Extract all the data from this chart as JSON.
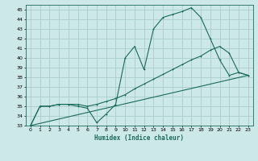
{
  "xlabel": "Humidex (Indice chaleur)",
  "bg_color": "#cce8e8",
  "grid_color": "#aacccc",
  "line_color": "#1a6b5a",
  "xlim": [
    -0.5,
    23.5
  ],
  "ylim": [
    33,
    45.5
  ],
  "yticks": [
    33,
    34,
    35,
    36,
    37,
    38,
    39,
    40,
    41,
    42,
    43,
    44,
    45
  ],
  "xticks": [
    0,
    1,
    2,
    3,
    4,
    5,
    6,
    7,
    8,
    9,
    10,
    11,
    12,
    13,
    14,
    15,
    16,
    17,
    18,
    19,
    20,
    21,
    22,
    23
  ],
  "line1_x": [
    0,
    1,
    2,
    3,
    4,
    5,
    6,
    7,
    8,
    9,
    10,
    11,
    12,
    13,
    14,
    15,
    16,
    17,
    18,
    19,
    20,
    21,
    22,
    23
  ],
  "line1_y": [
    33.0,
    35.0,
    35.0,
    35.2,
    35.2,
    35.0,
    34.8,
    33.3,
    34.2,
    35.2,
    40.0,
    41.2,
    38.8,
    43.0,
    44.2,
    44.5,
    44.8,
    45.2,
    44.2,
    42.0,
    39.8,
    38.2,
    38.5,
    38.2
  ],
  "line2_x": [
    0,
    1,
    2,
    3,
    4,
    5,
    6,
    7,
    8,
    9,
    10,
    11,
    12,
    13,
    14,
    15,
    16,
    17,
    18,
    19,
    20,
    21,
    22,
    23
  ],
  "line2_y": [
    33.0,
    35.0,
    35.0,
    35.2,
    35.2,
    35.2,
    35.0,
    35.2,
    35.5,
    35.8,
    36.2,
    36.8,
    37.3,
    37.8,
    38.3,
    38.8,
    39.3,
    39.8,
    40.2,
    40.8,
    41.2,
    40.5,
    38.5,
    38.2
  ],
  "line3_x": [
    0,
    23
  ],
  "line3_y": [
    33.0,
    38.2
  ]
}
